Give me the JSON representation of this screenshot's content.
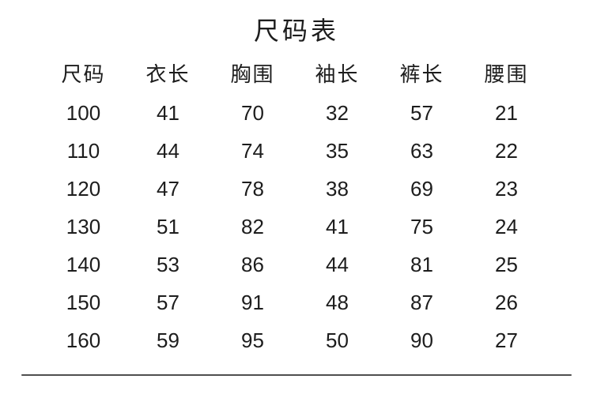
{
  "title": "尺码表",
  "table": {
    "headers": [
      "尺码",
      "衣长",
      "胸围",
      "袖长",
      "裤长",
      "腰围"
    ],
    "rows": [
      [
        "100",
        "41",
        "70",
        "32",
        "57",
        "21"
      ],
      [
        "110",
        "44",
        "74",
        "35",
        "63",
        "22"
      ],
      [
        "120",
        "47",
        "78",
        "38",
        "69",
        "23"
      ],
      [
        "130",
        "51",
        "82",
        "41",
        "75",
        "24"
      ],
      [
        "140",
        "53",
        "86",
        "44",
        "81",
        "25"
      ],
      [
        "150",
        "57",
        "91",
        "48",
        "87",
        "26"
      ],
      [
        "160",
        "59",
        "95",
        "50",
        "90",
        "27"
      ]
    ]
  },
  "colors": {
    "background": "#ffffff",
    "text": "#1d1d1d",
    "divider": "#4f4f4f"
  }
}
